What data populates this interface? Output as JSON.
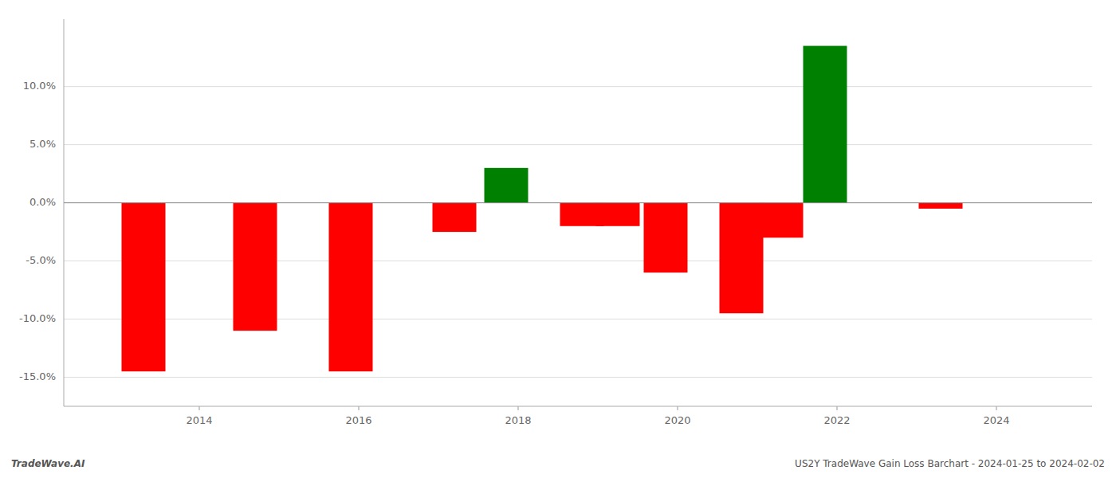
{
  "chart_data": {
    "type": "bar",
    "x": [
      2013.3,
      2014.7,
      2015.9,
      2017.2,
      2017.85,
      2018.8,
      2019.25,
      2019.85,
      2020.8,
      2021.3,
      2021.85,
      2023.3
    ],
    "values": [
      -0.145,
      -0.11,
      -0.145,
      -0.025,
      0.03,
      -0.02,
      -0.02,
      -0.06,
      -0.095,
      -0.03,
      0.135,
      -0.005
    ],
    "colors": [
      "#ff0000",
      "#ff0000",
      "#ff0000",
      "#ff0000",
      "#008000",
      "#ff0000",
      "#ff0000",
      "#ff0000",
      "#ff0000",
      "#ff0000",
      "#008000",
      "#ff0000"
    ],
    "xlim": [
      2012.3,
      2025.2
    ],
    "xticks": [
      2014,
      2016,
      2018,
      2020,
      2022,
      2024
    ],
    "ylim": [
      -0.175,
      0.158
    ],
    "yticks": [
      {
        "value": -0.15,
        "label": "-15.0%"
      },
      {
        "value": -0.1,
        "label": "-10.0%"
      },
      {
        "value": -0.05,
        "label": "-5.0%"
      },
      {
        "value": 0.0,
        "label": "0.0%"
      },
      {
        "value": 0.05,
        "label": "5.0%"
      },
      {
        "value": 0.1,
        "label": "10.0%"
      }
    ],
    "grid": true,
    "annotations": [
      "TradeWave.AI",
      "US2Y TradeWave Gain Loss Barchart - 2024-01-25 to 2024-02-02"
    ]
  }
}
